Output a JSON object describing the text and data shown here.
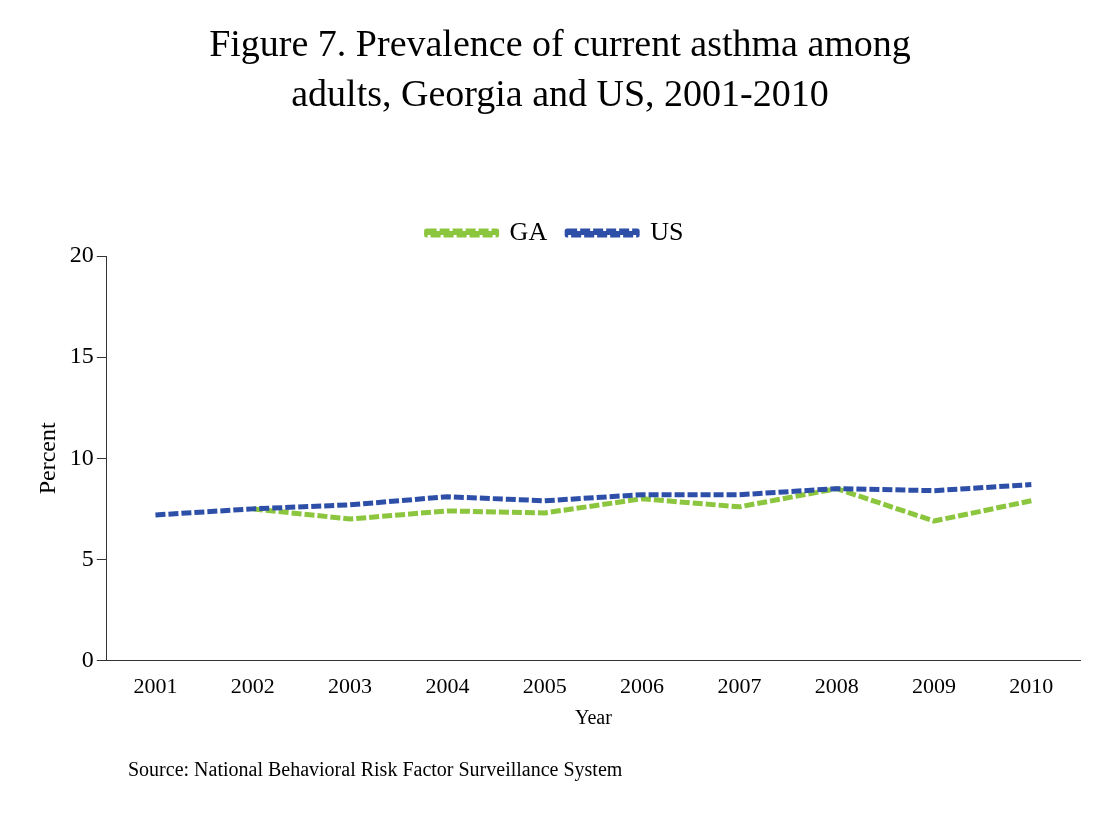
{
  "chart_data": {
    "type": "line",
    "title": "Figure 7. Prevalence of current asthma among adults, Georgia and US, 2001-2010",
    "xlabel": "Year",
    "ylabel": "Percent",
    "categories": [
      "2001",
      "2002",
      "2003",
      "2004",
      "2005",
      "2006",
      "2007",
      "2008",
      "2009",
      "2010"
    ],
    "series": [
      {
        "name": "GA",
        "color": "#8cc63f",
        "values": [
          null,
          7.5,
          7.0,
          7.4,
          7.3,
          8.0,
          7.6,
          8.5,
          6.9,
          7.9
        ]
      },
      {
        "name": "US",
        "color": "#2e4fa8",
        "values": [
          7.2,
          7.5,
          7.7,
          8.1,
          7.9,
          8.2,
          8.2,
          8.5,
          8.4,
          8.7
        ]
      }
    ],
    "ylim": [
      0,
      20
    ],
    "yticks": [
      0,
      5,
      10,
      15,
      20
    ],
    "grid": false,
    "legend": "top",
    "marker": "none",
    "line_style": "dashed",
    "annotations": [
      "Source: National Behavioral Risk Factor Surveillance System"
    ]
  }
}
